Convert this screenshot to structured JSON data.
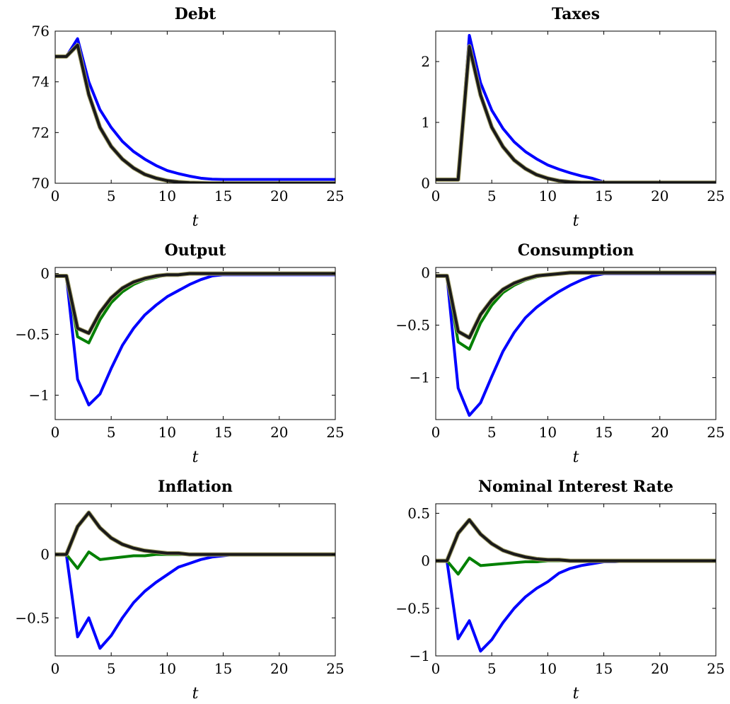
{
  "chart_data": [
    {
      "type": "line",
      "title": "Debt",
      "xlabel": "t",
      "ylabel": "",
      "xlim": [
        0,
        25
      ],
      "ylim": [
        70,
        76
      ],
      "xticks": [
        "0",
        "5",
        "10",
        "15",
        "20",
        "25"
      ],
      "yticks": [
        "70",
        "72",
        "74",
        "76"
      ],
      "x": [
        0,
        1,
        2,
        3,
        4,
        5,
        6,
        7,
        8,
        9,
        10,
        11,
        12,
        13,
        14,
        15,
        16,
        17,
        18,
        19,
        20,
        21,
        22,
        23,
        24,
        25
      ],
      "series": [
        {
          "values": [
            75,
            75,
            75.7,
            74.0,
            72.9,
            72.2,
            71.65,
            71.25,
            70.95,
            70.7,
            70.5,
            70.38,
            70.28,
            70.2,
            70.16,
            70.15,
            70.15,
            70.15,
            70.15,
            70.15,
            70.15,
            70.15,
            70.15,
            70.15,
            70.15,
            70.15
          ],
          "color": "#0000ff"
        },
        {
          "values": [
            75,
            75,
            75.45,
            73.5,
            72.2,
            71.45,
            70.95,
            70.6,
            70.35,
            70.2,
            70.1,
            70.05,
            70.02,
            70.01,
            70,
            70,
            70,
            70,
            70,
            70,
            70,
            70,
            70,
            70,
            70,
            70
          ],
          "color": "#008000"
        },
        {
          "values": [
            75,
            75,
            75.45,
            73.5,
            72.2,
            71.45,
            70.95,
            70.6,
            70.35,
            70.2,
            70.1,
            70.05,
            70.02,
            70.01,
            70,
            70,
            70,
            70,
            70,
            70,
            70,
            70,
            70,
            70,
            70,
            70
          ],
          "color": "#1a1a1a"
        }
      ]
    },
    {
      "type": "line",
      "title": "Taxes",
      "xlabel": "t",
      "ylabel": "",
      "xlim": [
        0,
        25
      ],
      "ylim": [
        0,
        2.5
      ],
      "xticks": [
        "0",
        "5",
        "10",
        "15",
        "20",
        "25"
      ],
      "yticks": [
        "0",
        "1",
        "2"
      ],
      "x": [
        0,
        1,
        2,
        3,
        4,
        5,
        6,
        7,
        8,
        9,
        10,
        11,
        12,
        13,
        14,
        15,
        16,
        17,
        18,
        19,
        20,
        21,
        22,
        23,
        24,
        25
      ],
      "series": [
        {
          "values": [
            0.06,
            0.06,
            0.06,
            2.43,
            1.65,
            1.2,
            0.9,
            0.68,
            0.52,
            0.4,
            0.3,
            0.23,
            0.17,
            0.12,
            0.08,
            0.02,
            0.02,
            0.02,
            0.02,
            0.02,
            0.02,
            0.02,
            0.02,
            0.02,
            0.02,
            0.02
          ],
          "color": "#0000ff"
        },
        {
          "values": [
            0.06,
            0.06,
            0.06,
            2.25,
            1.45,
            0.92,
            0.6,
            0.38,
            0.24,
            0.14,
            0.08,
            0.04,
            0.02,
            0.01,
            0.01,
            0.01,
            0.01,
            0.01,
            0.01,
            0.01,
            0.01,
            0.01,
            0.01,
            0.01,
            0.01,
            0.01
          ],
          "color": "#008000"
        },
        {
          "values": [
            0.06,
            0.06,
            0.06,
            2.25,
            1.45,
            0.92,
            0.6,
            0.38,
            0.24,
            0.14,
            0.08,
            0.04,
            0.02,
            0.01,
            0.01,
            0.01,
            0.01,
            0.01,
            0.01,
            0.01,
            0.01,
            0.01,
            0.01,
            0.01,
            0.01,
            0.01
          ],
          "color": "#1a1a1a"
        }
      ]
    },
    {
      "type": "line",
      "title": "Output",
      "xlabel": "t",
      "ylabel": "",
      "xlim": [
        0,
        25
      ],
      "ylim": [
        -1.2,
        0.05
      ],
      "xticks": [
        "0",
        "5",
        "10",
        "15",
        "20",
        "25"
      ],
      "yticks": [
        "0",
        "−0.5",
        "−1"
      ],
      "x": [
        0,
        1,
        2,
        3,
        4,
        5,
        6,
        7,
        8,
        9,
        10,
        11,
        12,
        13,
        14,
        15,
        16,
        17,
        18,
        19,
        20,
        21,
        22,
        23,
        24,
        25
      ],
      "series": [
        {
          "values": [
            -0.02,
            -0.02,
            -0.87,
            -1.08,
            -0.99,
            -0.78,
            -0.59,
            -0.45,
            -0.34,
            -0.26,
            -0.19,
            -0.14,
            -0.09,
            -0.05,
            -0.02,
            -0.01,
            -0.01,
            -0.01,
            -0.01,
            -0.01,
            -0.01,
            -0.01,
            -0.01,
            -0.01,
            -0.01,
            -0.01
          ],
          "color": "#0000ff"
        },
        {
          "values": [
            -0.02,
            -0.02,
            -0.52,
            -0.57,
            -0.38,
            -0.24,
            -0.15,
            -0.09,
            -0.05,
            -0.03,
            -0.01,
            -0.01,
            0,
            0,
            0,
            0,
            0,
            0,
            0,
            0,
            0,
            0,
            0,
            0,
            0,
            0
          ],
          "color": "#008000"
        },
        {
          "values": [
            -0.02,
            -0.02,
            -0.45,
            -0.49,
            -0.32,
            -0.2,
            -0.12,
            -0.07,
            -0.04,
            -0.02,
            -0.01,
            -0.01,
            0,
            0,
            0,
            0,
            0,
            0,
            0,
            0,
            0,
            0,
            0,
            0,
            0,
            0
          ],
          "color": "#1a1a1a"
        }
      ]
    },
    {
      "type": "line",
      "title": "Consumption",
      "xlabel": "t",
      "ylabel": "",
      "xlim": [
        0,
        25
      ],
      "ylim": [
        -1.4,
        0.05
      ],
      "xticks": [
        "0",
        "5",
        "10",
        "15",
        "20",
        "25"
      ],
      "yticks": [
        "0",
        "−0.5",
        "−1"
      ],
      "x": [
        0,
        1,
        2,
        3,
        4,
        5,
        6,
        7,
        8,
        9,
        10,
        11,
        12,
        13,
        14,
        15,
        16,
        17,
        18,
        19,
        20,
        21,
        22,
        23,
        24,
        25
      ],
      "series": [
        {
          "values": [
            -0.03,
            -0.03,
            -1.1,
            -1.36,
            -1.24,
            -0.99,
            -0.75,
            -0.57,
            -0.43,
            -0.33,
            -0.25,
            -0.18,
            -0.12,
            -0.07,
            -0.03,
            -0.01,
            -0.01,
            -0.01,
            -0.01,
            -0.01,
            -0.01,
            -0.01,
            -0.01,
            -0.01,
            -0.01,
            -0.01
          ],
          "color": "#0000ff"
        },
        {
          "values": [
            -0.03,
            -0.03,
            -0.66,
            -0.73,
            -0.48,
            -0.31,
            -0.19,
            -0.12,
            -0.07,
            -0.04,
            -0.02,
            -0.01,
            0,
            0,
            0,
            0,
            0,
            0,
            0,
            0,
            0,
            0,
            0,
            0,
            0,
            0
          ],
          "color": "#008000"
        },
        {
          "values": [
            -0.03,
            -0.03,
            -0.56,
            -0.62,
            -0.4,
            -0.26,
            -0.16,
            -0.1,
            -0.06,
            -0.03,
            -0.02,
            -0.01,
            0,
            0,
            0,
            0,
            0,
            0,
            0,
            0,
            0,
            0,
            0,
            0,
            0,
            0
          ],
          "color": "#1a1a1a"
        }
      ]
    },
    {
      "type": "line",
      "title": "Inflation",
      "xlabel": "t",
      "ylabel": "",
      "xlim": [
        0,
        25
      ],
      "ylim": [
        -0.8,
        0.4
      ],
      "xticks": [
        "0",
        "5",
        "10",
        "15",
        "20",
        "25"
      ],
      "yticks": [
        "0",
        "−0.5"
      ],
      "x": [
        0,
        1,
        2,
        3,
        4,
        5,
        6,
        7,
        8,
        9,
        10,
        11,
        12,
        13,
        14,
        15,
        16,
        17,
        18,
        19,
        20,
        21,
        22,
        23,
        24,
        25
      ],
      "series": [
        {
          "values": [
            0,
            0,
            -0.65,
            -0.5,
            -0.74,
            -0.64,
            -0.5,
            -0.38,
            -0.29,
            -0.22,
            -0.16,
            -0.1,
            -0.07,
            -0.04,
            -0.02,
            -0.01,
            0,
            0,
            0,
            0,
            0,
            0,
            0,
            0,
            0,
            0
          ],
          "color": "#0000ff"
        },
        {
          "values": [
            0,
            0,
            -0.11,
            0.02,
            -0.04,
            -0.03,
            -0.02,
            -0.01,
            -0.01,
            0,
            0,
            0,
            0,
            0,
            0,
            0,
            0,
            0,
            0,
            0,
            0,
            0,
            0,
            0,
            0,
            0
          ],
          "color": "#008000"
        },
        {
          "values": [
            0,
            0,
            0.22,
            0.33,
            0.21,
            0.13,
            0.08,
            0.05,
            0.03,
            0.02,
            0.01,
            0.01,
            0,
            0,
            0,
            0,
            0,
            0,
            0,
            0,
            0,
            0,
            0,
            0,
            0,
            0
          ],
          "color": "#1a1a1a"
        }
      ]
    },
    {
      "type": "line",
      "title": "Nominal Interest Rate",
      "xlabel": "t",
      "ylabel": "",
      "xlim": [
        0,
        25
      ],
      "ylim": [
        -1,
        0.6
      ],
      "xticks": [
        "0",
        "5",
        "10",
        "15",
        "20",
        "25"
      ],
      "yticks": [
        "−1",
        "−0.5",
        "0",
        "0.5"
      ],
      "x": [
        0,
        1,
        2,
        3,
        4,
        5,
        6,
        7,
        8,
        9,
        10,
        11,
        12,
        13,
        14,
        15,
        16,
        17,
        18,
        19,
        20,
        21,
        22,
        23,
        24,
        25
      ],
      "series": [
        {
          "values": [
            0,
            0,
            -0.82,
            -0.63,
            -0.95,
            -0.83,
            -0.65,
            -0.5,
            -0.38,
            -0.29,
            -0.22,
            -0.13,
            -0.08,
            -0.05,
            -0.03,
            -0.01,
            -0.01,
            0,
            0,
            0,
            0,
            0,
            0,
            0,
            0,
            0
          ],
          "color": "#0000ff"
        },
        {
          "values": [
            0,
            0,
            -0.14,
            0.03,
            -0.05,
            -0.04,
            -0.03,
            -0.02,
            -0.01,
            -0.01,
            0,
            0,
            0,
            0,
            0,
            0,
            0,
            0,
            0,
            0,
            0,
            0,
            0,
            0,
            0,
            0
          ],
          "color": "#008000"
        },
        {
          "values": [
            0,
            0,
            0.29,
            0.43,
            0.28,
            0.18,
            0.11,
            0.07,
            0.04,
            0.02,
            0.01,
            0.01,
            0,
            0,
            0,
            0,
            0,
            0,
            0,
            0,
            0,
            0,
            0,
            0,
            0,
            0
          ],
          "color": "#1a1a1a"
        }
      ]
    }
  ]
}
